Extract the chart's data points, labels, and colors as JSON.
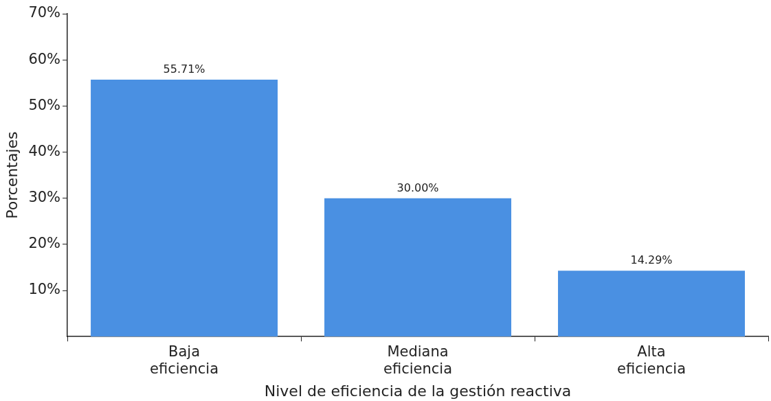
{
  "chart_data": {
    "type": "bar",
    "xlabel": "Nivel de eficiencia de la gestión reactiva",
    "ylabel": "Porcentajes",
    "categories": [
      "Baja eficiencia",
      "Mediana eficiencia",
      "Alta eficiencia"
    ],
    "values": [
      55.71,
      30.0,
      14.29
    ],
    "value_labels": [
      "55.71%",
      "30.00%",
      "14.29%"
    ],
    "color": "#4a90e2",
    "ylim": [
      0,
      70
    ],
    "yticks": [
      {
        "value": 10,
        "label": "10%"
      },
      {
        "value": 20,
        "label": "20%"
      },
      {
        "value": 30,
        "label": "30%"
      },
      {
        "value": 40,
        "label": "40%"
      },
      {
        "value": 50,
        "label": "50%"
      },
      {
        "value": 60,
        "label": "60%"
      },
      {
        "value": 70,
        "label": "70%"
      }
    ],
    "grid": false,
    "legend": false
  }
}
